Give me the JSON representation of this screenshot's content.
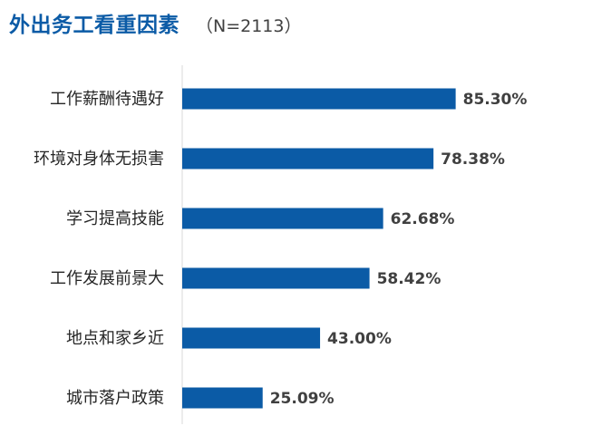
{
  "title": "外出务工看重因素",
  "subtitle": "（N=2113）",
  "colors": {
    "title": "#0B5BA6",
    "bar": "#0B5BA6",
    "axis": "#D9D9D9"
  },
  "chart_data": {
    "type": "bar",
    "orientation": "horizontal",
    "title": "外出务工看重因素",
    "subtitle": "（N=2113）",
    "categories": [
      "工作薪酬待遇好",
      "环境对身体无损害",
      "学习提高技能",
      "工作发展前景大",
      "地点和家乡近",
      "城市落户政策"
    ],
    "values": [
      85.3,
      78.38,
      62.68,
      58.42,
      43.0,
      25.09
    ],
    "value_labels": [
      "85.30%",
      "78.38%",
      "62.68%",
      "58.42%",
      "43.00%",
      "25.09%"
    ],
    "unit": "%",
    "xlim": [
      0,
      100
    ],
    "grid": false,
    "legend": "none"
  }
}
